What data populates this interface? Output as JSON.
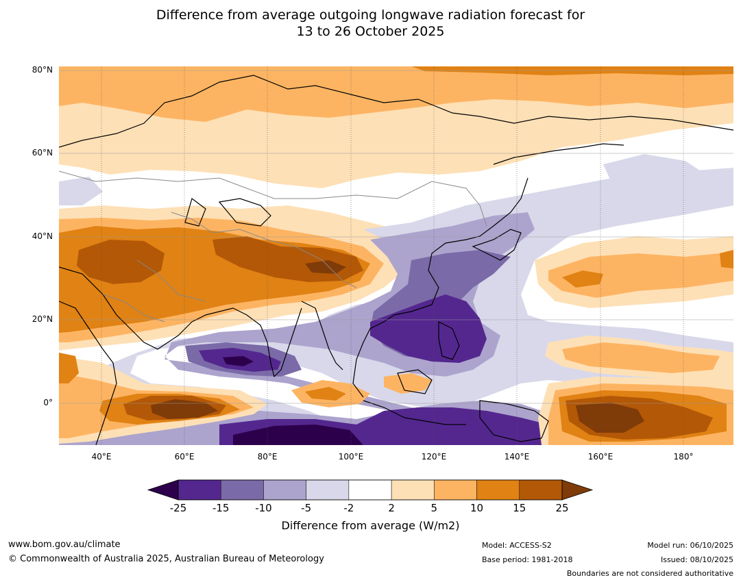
{
  "title": {
    "line1": "Difference from average outgoing longwave radiation forecast for",
    "line2": "13 to 26 October 2025"
  },
  "map": {
    "lat_labels": [
      "80°N",
      "60°N",
      "40°N",
      "20°N",
      "0°"
    ],
    "lon_labels": [
      "40°E",
      "60°E",
      "80°E",
      "100°E",
      "120°E",
      "140°E",
      "160°E",
      "180°"
    ],
    "extent": {
      "lon": [
        30,
        192
      ],
      "lat": [
        -10,
        81
      ]
    }
  },
  "colorbar": {
    "ticks": [
      "-25",
      "-15",
      "-10",
      "-5",
      "-2",
      "2",
      "5",
      "10",
      "15",
      "25"
    ],
    "colors": [
      "#54278f",
      "#7b6aa8",
      "#aca4cd",
      "#d8d8ea",
      "#ffffff",
      "#fee0b6",
      "#fdb462",
      "#e08214",
      "#b35806"
    ],
    "under_color": "#2d004b",
    "over_color": "#7f3b08",
    "label": "Difference from average (W/m2)"
  },
  "footer": {
    "website": "www.bom.gov.au/climate",
    "copyright": "© Commonwealth of Australia 2025, Australian Bureau of Meteorology",
    "model": "Model: ACCESS-S2",
    "base_period": "Base period: 1981-2018",
    "model_run": "Model run: 06/10/2025",
    "issued": "Issued: 08/10/2025",
    "disclaimer": "Boundaries are not considered authoritative"
  }
}
